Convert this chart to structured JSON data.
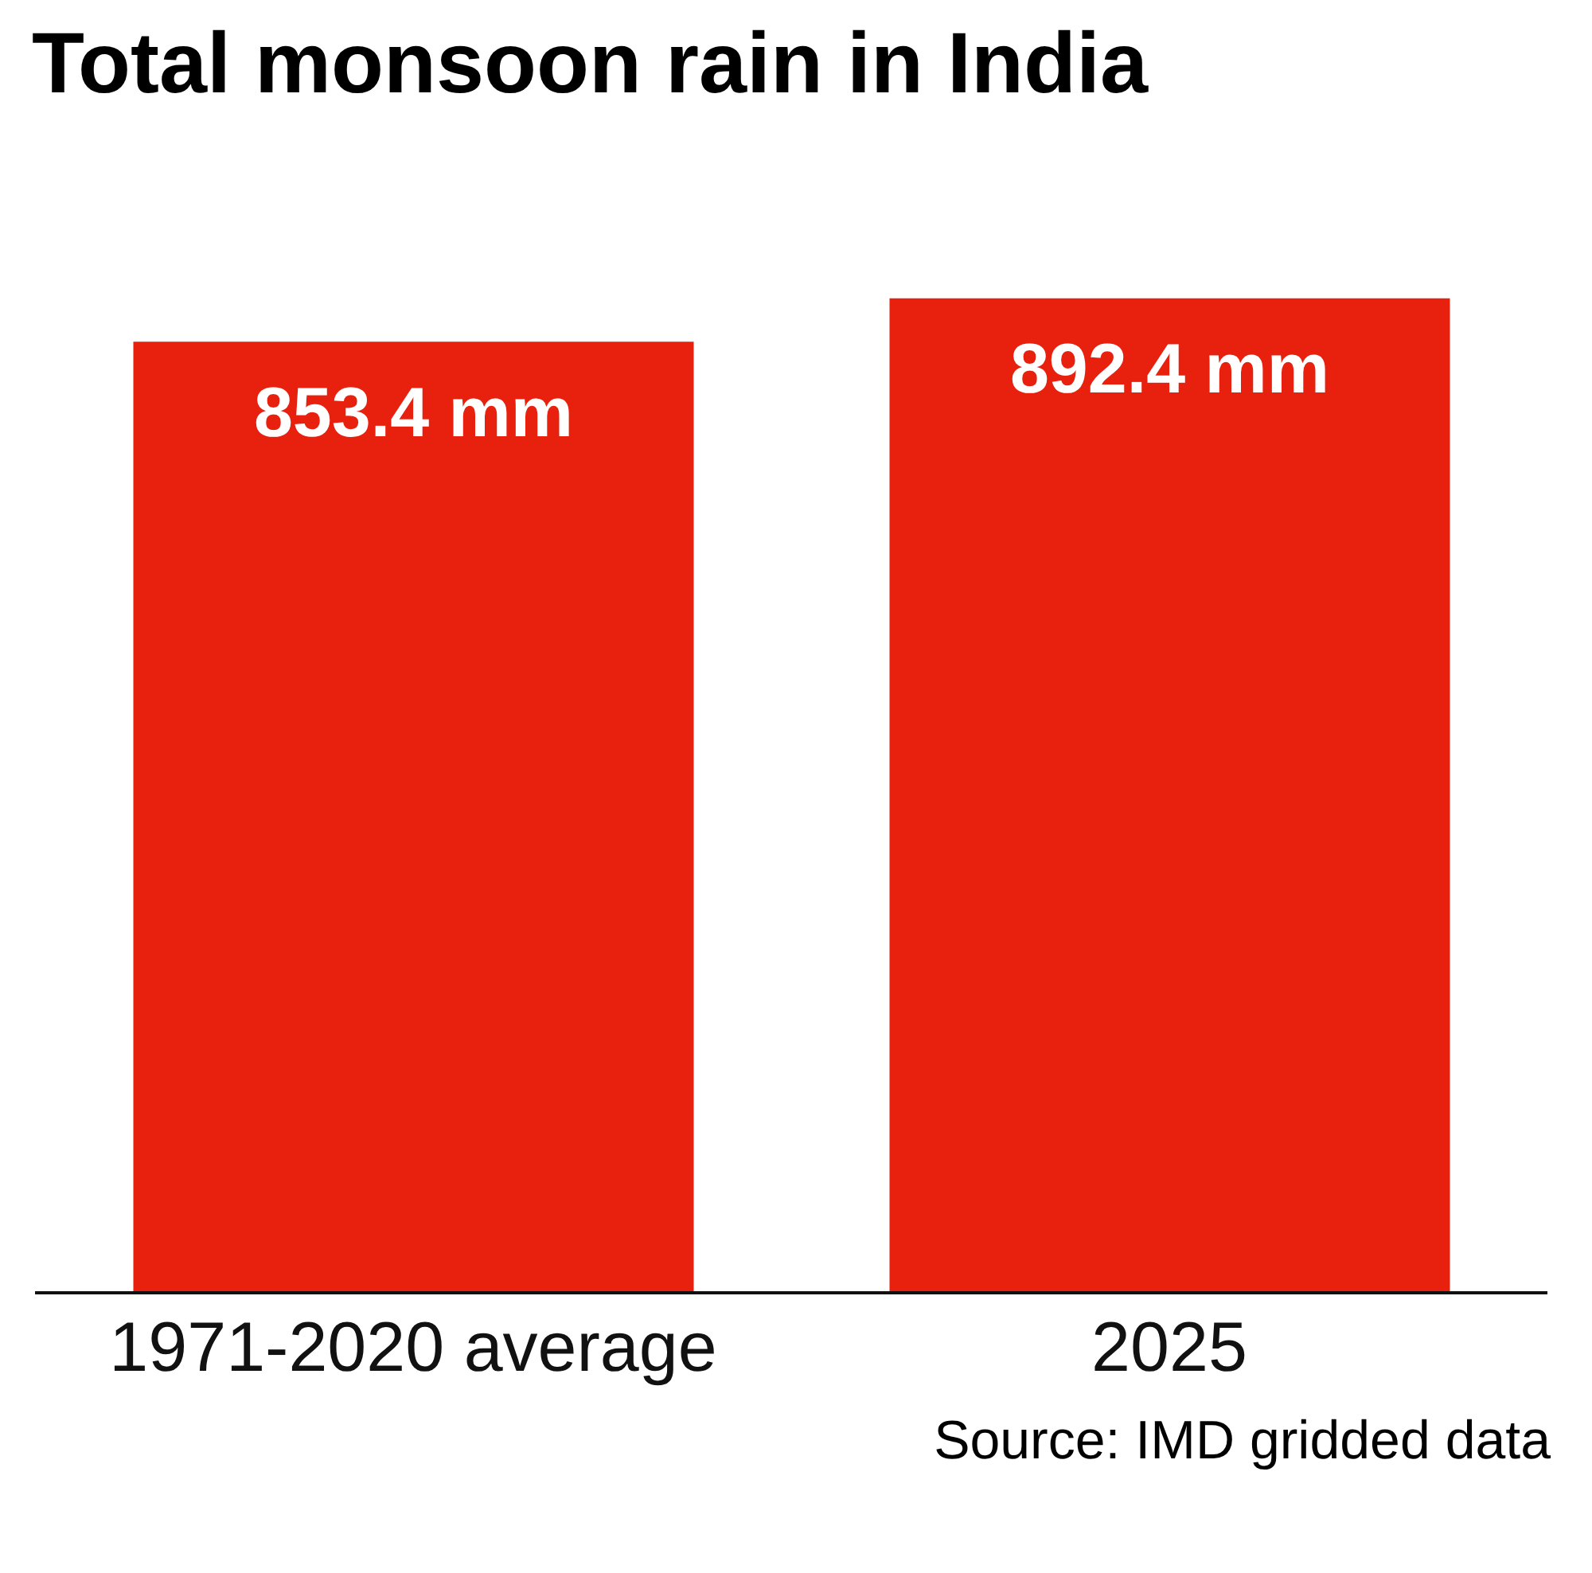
{
  "chart_data": {
    "type": "bar",
    "title": "Total monsoon rain in India",
    "categories": [
      "1971-2020 average",
      "2025"
    ],
    "values": [
      853.4,
      892.4
    ],
    "color": "#e8200e",
    "value_labels": [
      "853.4 mm",
      "892.4 mm"
    ],
    "tick_labels": "x",
    "annotations": [
      "Source: IMD gridded data"
    ]
  }
}
